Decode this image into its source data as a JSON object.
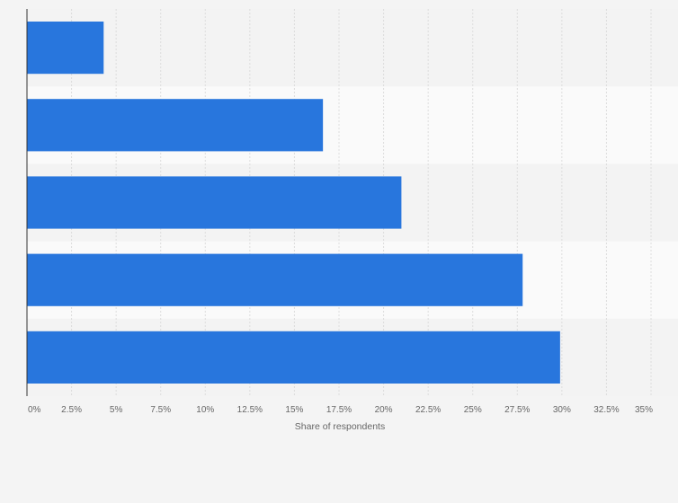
{
  "chart_data": {
    "type": "bar",
    "orientation": "horizontal",
    "title": "",
    "xlabel": "Share of respondents",
    "ylabel": "",
    "categories": [
      "",
      "",
      "",
      "",
      ""
    ],
    "values": [
      4.3,
      16.6,
      21.0,
      27.8,
      29.9
    ],
    "xlim": [
      0,
      35
    ],
    "x_ticks": [
      0,
      2.5,
      5,
      7.5,
      10,
      12.5,
      15,
      17.5,
      20,
      22.5,
      25,
      27.5,
      30,
      32.5,
      35
    ],
    "x_tick_labels": [
      "0%",
      "2.5%",
      "5%",
      "7.5%",
      "10%",
      "12.5%",
      "15%",
      "17.5%",
      "20%",
      "22.5%",
      "25%",
      "27.5%",
      "30%",
      "32.5%",
      "35%"
    ],
    "grid": true,
    "legend": "none",
    "colors": {
      "bar": "#2876dd",
      "band_odd": "#f3f3f3",
      "band_even": "#fafafa",
      "grid": "#dddddd",
      "axis": "#333333",
      "text": "#666666"
    }
  }
}
